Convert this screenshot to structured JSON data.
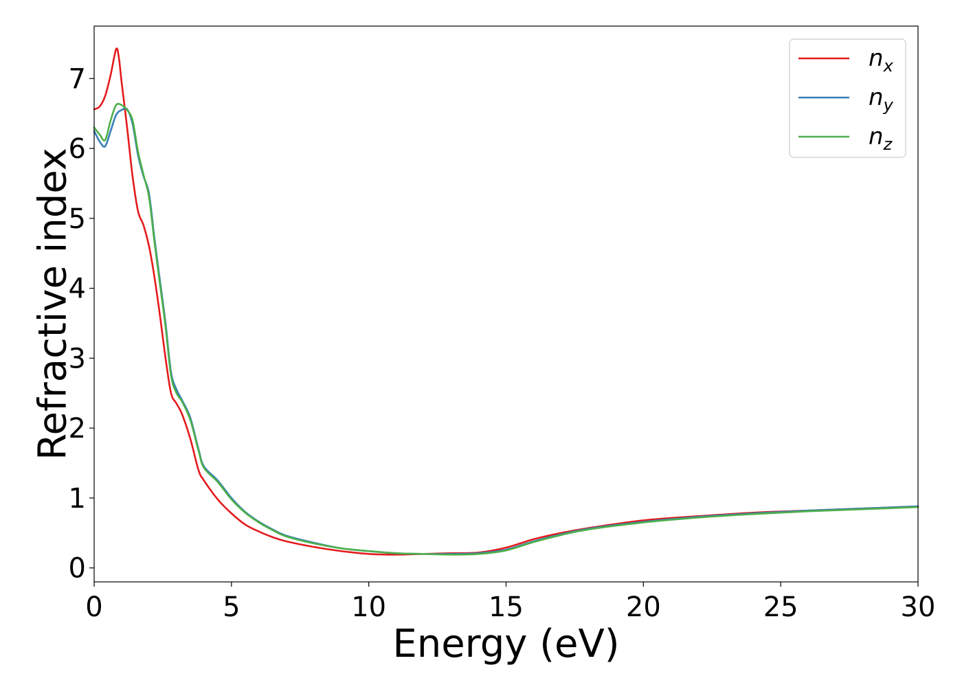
{
  "chart_data": {
    "type": "line",
    "title": "",
    "xlabel": "Energy (eV)",
    "ylabel": "Refractive index",
    "xlim": [
      0,
      30
    ],
    "ylim": [
      -0.2,
      7.75
    ],
    "xticks": [
      0,
      5,
      10,
      15,
      20,
      25,
      30
    ],
    "yticks": [
      0,
      1,
      2,
      3,
      4,
      5,
      6,
      7
    ],
    "grid": false,
    "legend_position": "top-right",
    "series": [
      {
        "name": "n_x",
        "label_main": "n",
        "label_sub": "x",
        "color": "#e41a1c",
        "x": [
          0,
          0.2,
          0.4,
          0.6,
          0.8,
          0.9,
          1.0,
          1.2,
          1.4,
          1.6,
          1.8,
          2.0,
          2.2,
          2.4,
          2.6,
          2.8,
          3.0,
          3.2,
          3.5,
          3.8,
          4.0,
          4.5,
          5.0,
          5.5,
          6.0,
          6.5,
          7.0,
          8.0,
          9.0,
          10.0,
          11.0,
          12.0,
          13.0,
          14.0,
          15.0,
          16.0,
          17.0,
          18.0,
          20.0,
          22.0,
          24.0,
          26.0,
          28.0,
          30.0
        ],
        "y": [
          6.56,
          6.6,
          6.75,
          7.05,
          7.42,
          7.3,
          6.95,
          6.3,
          5.6,
          5.1,
          4.9,
          4.6,
          4.15,
          3.6,
          3.0,
          2.5,
          2.35,
          2.2,
          1.85,
          1.4,
          1.25,
          0.98,
          0.78,
          0.62,
          0.52,
          0.44,
          0.38,
          0.3,
          0.24,
          0.2,
          0.19,
          0.2,
          0.21,
          0.22,
          0.29,
          0.41,
          0.5,
          0.57,
          0.68,
          0.74,
          0.79,
          0.82,
          0.85,
          0.88
        ]
      },
      {
        "name": "n_y",
        "label_main": "n",
        "label_sub": "y",
        "color": "#377eb8",
        "x": [
          0,
          0.2,
          0.4,
          0.6,
          0.8,
          1.0,
          1.2,
          1.4,
          1.6,
          1.8,
          2.0,
          2.2,
          2.4,
          2.6,
          2.8,
          3.0,
          3.2,
          3.5,
          3.8,
          4.0,
          4.5,
          5.0,
          5.5,
          6.0,
          6.5,
          7.0,
          8.0,
          9.0,
          10.0,
          11.0,
          12.0,
          13.0,
          14.0,
          15.0,
          16.0,
          17.0,
          18.0,
          20.0,
          22.0,
          24.0,
          26.0,
          28.0,
          30.0
        ],
        "y": [
          6.25,
          6.1,
          6.03,
          6.25,
          6.48,
          6.55,
          6.56,
          6.35,
          5.9,
          5.6,
          5.35,
          4.7,
          4.1,
          3.5,
          2.8,
          2.55,
          2.4,
          2.15,
          1.7,
          1.45,
          1.25,
          1.0,
          0.8,
          0.66,
          0.55,
          0.46,
          0.36,
          0.28,
          0.24,
          0.21,
          0.2,
          0.2,
          0.21,
          0.26,
          0.38,
          0.48,
          0.56,
          0.66,
          0.73,
          0.78,
          0.82,
          0.85,
          0.88
        ]
      },
      {
        "name": "n_z",
        "label_main": "n",
        "label_sub": "z",
        "color": "#4daf4a",
        "x": [
          0,
          0.2,
          0.4,
          0.6,
          0.8,
          1.0,
          1.2,
          1.4,
          1.6,
          1.8,
          2.0,
          2.2,
          2.4,
          2.6,
          2.8,
          3.0,
          3.2,
          3.5,
          3.8,
          4.0,
          4.5,
          5.0,
          5.5,
          6.0,
          6.5,
          7.0,
          8.0,
          9.0,
          10.0,
          11.0,
          12.0,
          13.0,
          14.0,
          15.0,
          16.0,
          17.0,
          18.0,
          20.0,
          22.0,
          24.0,
          26.0,
          28.0,
          30.0
        ],
        "y": [
          6.3,
          6.2,
          6.12,
          6.4,
          6.62,
          6.62,
          6.55,
          6.4,
          5.95,
          5.62,
          5.3,
          4.65,
          4.05,
          3.45,
          2.75,
          2.5,
          2.38,
          2.12,
          1.68,
          1.43,
          1.23,
          0.98,
          0.79,
          0.65,
          0.54,
          0.45,
          0.35,
          0.28,
          0.24,
          0.21,
          0.2,
          0.19,
          0.2,
          0.25,
          0.37,
          0.47,
          0.55,
          0.65,
          0.72,
          0.77,
          0.81,
          0.84,
          0.87
        ]
      }
    ]
  }
}
